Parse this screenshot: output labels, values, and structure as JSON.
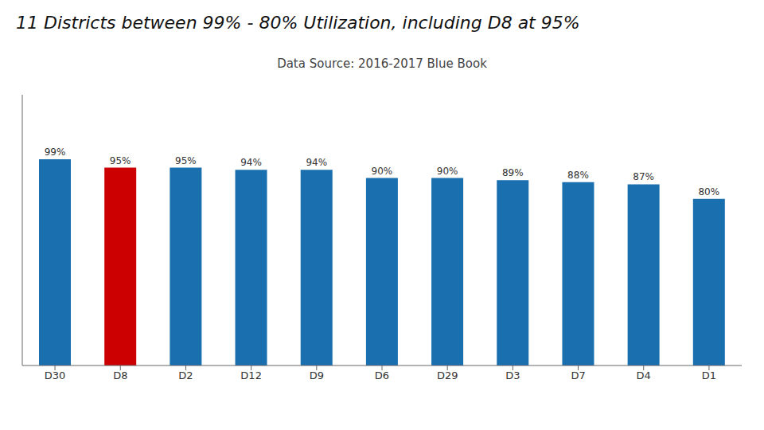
{
  "chart_data": {
    "type": "bar",
    "title": "11 Districts between 99% - 80% Utilization, including D8 at 95%",
    "subtitle": "Data Source: 2016-2017 Blue Book",
    "categories": [
      "D30",
      "D8",
      "D2",
      "D12",
      "D9",
      "D6",
      "D29",
      "D3",
      "D7",
      "D4",
      "D1"
    ],
    "values": [
      99,
      95,
      95,
      94,
      94,
      90,
      90,
      89,
      88,
      87,
      80
    ],
    "value_labels": [
      "99%",
      "95%",
      "95%",
      "94%",
      "94%",
      "90%",
      "90%",
      "89%",
      "88%",
      "87%",
      "80%"
    ],
    "colors": [
      "#1a6faf",
      "#cc0000",
      "#1a6faf",
      "#1a6faf",
      "#1a6faf",
      "#1a6faf",
      "#1a6faf",
      "#1a6faf",
      "#1a6faf",
      "#1a6faf",
      "#1a6faf"
    ],
    "ylim": [
      0,
      130
    ],
    "grid": false,
    "data_labels": true,
    "tick_labels": "x"
  }
}
